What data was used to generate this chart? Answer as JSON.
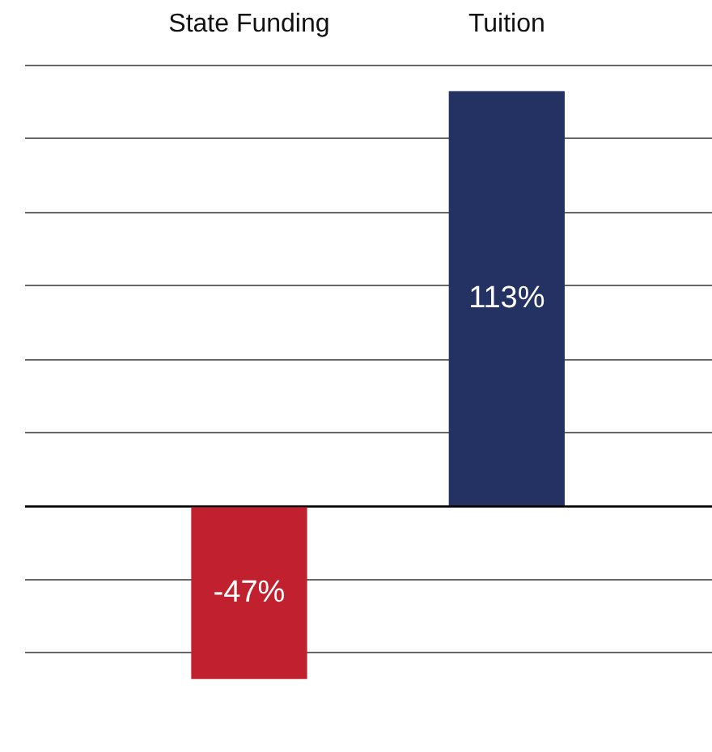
{
  "chart_data": {
    "type": "bar",
    "categories": [
      "State Funding",
      "Tuition"
    ],
    "values": [
      -47,
      113
    ],
    "colors": [
      "#c1212f",
      "#243163"
    ],
    "yticks": [
      {
        "value": -40,
        "label": null
      },
      {
        "value": -20,
        "label": null
      },
      {
        "value": 0,
        "label": null
      },
      {
        "value": 20,
        "label": null
      },
      {
        "value": 40,
        "label": null
      },
      {
        "value": 60,
        "label": null
      },
      {
        "value": 80,
        "label": null
      },
      {
        "value": 100,
        "label": null
      },
      {
        "value": 120,
        "label": null
      }
    ],
    "value_labels": [
      "-47%",
      "113%"
    ],
    "grid": "y",
    "tick_labels": "x"
  }
}
